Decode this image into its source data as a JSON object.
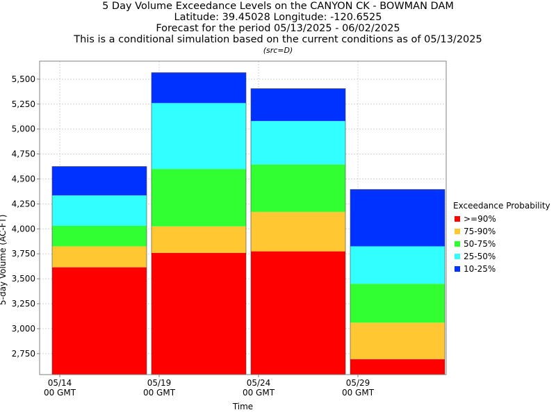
{
  "header": {
    "title_lines": [
      "5 Day Volume Exceedance Levels on the CANYON CK - BOWMAN DAM",
      "Latitude: 39.45028 Longitude: -120.6525",
      "Forecast for the period 05/13/2025 - 06/02/2025",
      "This is a conditional simulation based on the current conditions as of 05/13/2025"
    ],
    "source_note": "(src=D)"
  },
  "colors": {
    "p90": "#ff0000",
    "p75_90": "#ffc832",
    "p50_75": "#32ff32",
    "p25_50": "#32ffff",
    "p10_25": "#0032ff",
    "grid": "#d3d3d3",
    "axis": "#808080"
  },
  "chart_data": {
    "type": "bar",
    "stacked": true,
    "xlabel": "Time",
    "ylabel": "5-day Volume (AC-FT)",
    "ylim": [
      2540,
      5680
    ],
    "y_ticks": [
      2750,
      3000,
      3250,
      3500,
      3750,
      4000,
      4250,
      4500,
      4750,
      5000,
      5250,
      5500
    ],
    "y_tick_labels": [
      "2,750",
      "3,000",
      "3,250",
      "3,500",
      "3,750",
      "4,000",
      "4,250",
      "4,500",
      "4,750",
      "5,000",
      "5,250",
      "5,500"
    ],
    "x_ticks": [
      {
        "label": "05/14",
        "sub": "00 GMT"
      },
      {
        "label": "05/19",
        "sub": "00 GMT"
      },
      {
        "label": "05/24",
        "sub": "00 GMT"
      },
      {
        "label": "05/29",
        "sub": "00 GMT"
      }
    ],
    "grid": true,
    "legend_title": "Exceedance Probability",
    "legend_position": "right",
    "series": [
      {
        "name": ">=90%",
        "color": "#ff0000"
      },
      {
        "name": "75-90%",
        "color": "#ffc832"
      },
      {
        "name": "50-75%",
        "color": "#32ff32"
      },
      {
        "name": "25-50%",
        "color": "#32ffff"
      },
      {
        "name": "10-25%",
        "color": "#0032ff"
      }
    ],
    "bars": [
      {
        "period": "05/14 - 05/19",
        "levels": [
          3615,
          3825,
          4030,
          4335,
          4625
        ]
      },
      {
        "period": "05/19 - 05/24",
        "levels": [
          3760,
          4025,
          4600,
          5260,
          5565
        ]
      },
      {
        "period": "05/24 - 05/29",
        "levels": [
          3775,
          4170,
          4645,
          5080,
          5405
        ]
      },
      {
        "period": "05/29 - 06/02",
        "levels": [
          2695,
          3060,
          3450,
          3825,
          4395
        ]
      }
    ]
  }
}
